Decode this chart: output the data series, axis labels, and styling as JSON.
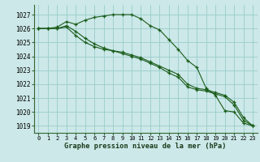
{
  "title": "Graphe pression niveau de la mer (hPa)",
  "bg_color": "#cce8e8",
  "grid_color": "#99cccc",
  "line_color": "#1a5c1a",
  "x_labels": [
    "0",
    "1",
    "2",
    "3",
    "4",
    "5",
    "6",
    "7",
    "8",
    "9",
    "10",
    "11",
    "12",
    "13",
    "14",
    "15",
    "16",
    "17",
    "18",
    "19",
    "20",
    "21",
    "22",
    "23"
  ],
  "xlim": [
    -0.5,
    23.5
  ],
  "ylim": [
    1018.5,
    1027.7
  ],
  "yticks": [
    1019,
    1020,
    1021,
    1022,
    1023,
    1024,
    1025,
    1026,
    1027
  ],
  "figsize": [
    3.2,
    2.0
  ],
  "dpi": 100,
  "series": [
    [
      1026.0,
      1026.0,
      1026.1,
      1026.5,
      1026.3,
      1026.6,
      1026.8,
      1026.9,
      1027.0,
      1027.0,
      1027.0,
      1026.7,
      1026.2,
      1025.9,
      1025.2,
      1024.5,
      1023.7,
      1023.2,
      1021.7,
      1021.2,
      1020.1,
      1020.0,
      1019.2,
      1019.0
    ],
    [
      1026.0,
      1026.0,
      1026.0,
      1026.1,
      1025.5,
      1025.0,
      1024.7,
      1024.5,
      1024.4,
      1024.2,
      1024.0,
      1023.8,
      1023.5,
      1023.2,
      1022.8,
      1022.5,
      1021.8,
      1021.6,
      1021.5,
      1021.3,
      1021.1,
      1020.5,
      1019.4,
      1019.0
    ],
    [
      1026.0,
      1026.0,
      1026.0,
      1026.2,
      1025.8,
      1025.3,
      1024.9,
      1024.6,
      1024.4,
      1024.3,
      1024.1,
      1023.9,
      1023.6,
      1023.3,
      1023.0,
      1022.7,
      1022.0,
      1021.7,
      1021.6,
      1021.4,
      1021.2,
      1020.7,
      1019.6,
      1019.0
    ]
  ]
}
